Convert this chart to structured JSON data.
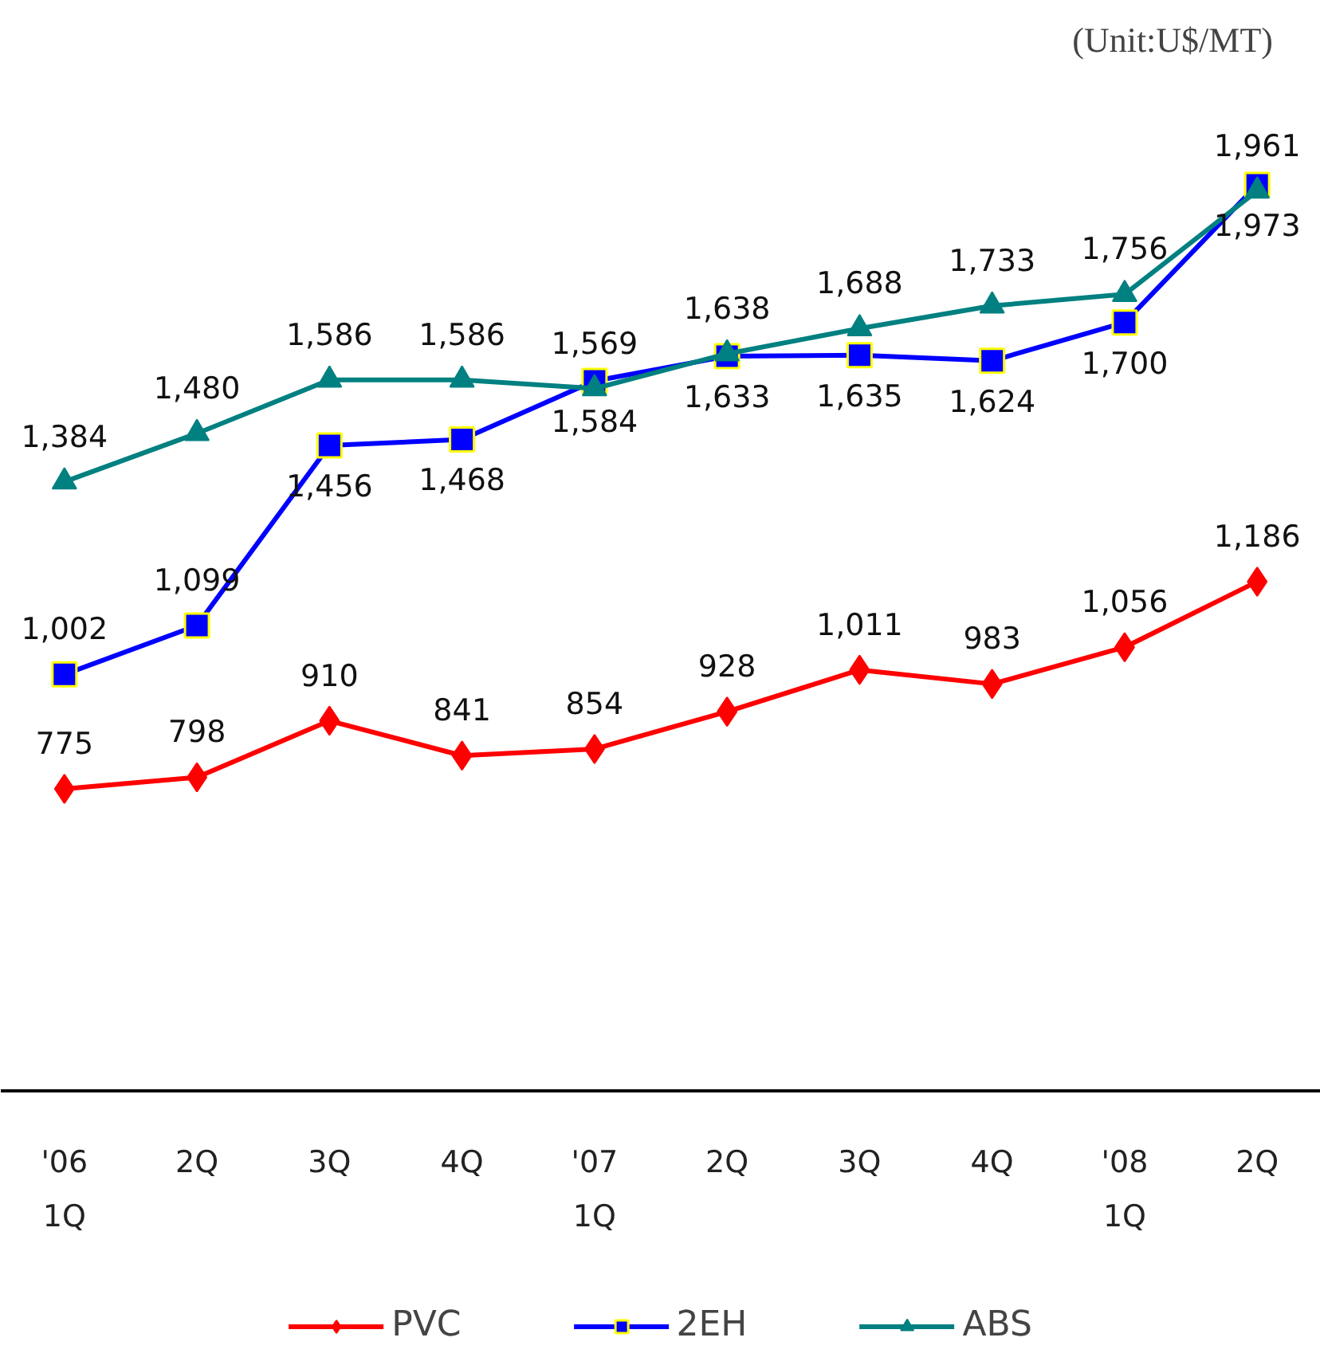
{
  "chart_data": {
    "type": "line",
    "categories": [
      "'06\n1Q",
      "2Q",
      "3Q",
      "4Q",
      "'07\n1Q",
      "2Q",
      "3Q",
      "4Q",
      "'08\n1Q",
      "2Q"
    ],
    "series": [
      {
        "name": "PVC",
        "color": "#ff0000",
        "marker": "diamond",
        "values": [
          775,
          798,
          910,
          841,
          854,
          928,
          1011,
          983,
          1056,
          1186
        ],
        "value_labels": [
          "775",
          "798",
          "910",
          "841",
          "854",
          "928",
          "1,011",
          "983",
          "1,056",
          "1,186"
        ]
      },
      {
        "name": "2EH",
        "color": "#0000ff",
        "marker": "square",
        "values": [
          1002,
          1099,
          1456,
          1468,
          1584,
          1633,
          1635,
          1624,
          1700,
          1973
        ],
        "value_labels": [
          "1,002",
          "1,099",
          "1,456",
          "1,468",
          "1,584",
          "1,633",
          "1,635",
          "1,624",
          "1,700",
          "1,973"
        ]
      },
      {
        "name": "ABS",
        "color": "#008080",
        "marker": "triangle",
        "values": [
          1384,
          1480,
          1586,
          1586,
          1569,
          1638,
          1688,
          1733,
          1756,
          1961
        ],
        "value_labels": [
          "1,384",
          "1,480",
          "1,586",
          "1,586",
          "1,569",
          "1,638",
          "1,688",
          "1,733",
          "1,756",
          "1,961"
        ]
      }
    ],
    "grid": false,
    "legend": "bottom",
    "annotations": [
      "(Unit:U$/MT)"
    ]
  }
}
